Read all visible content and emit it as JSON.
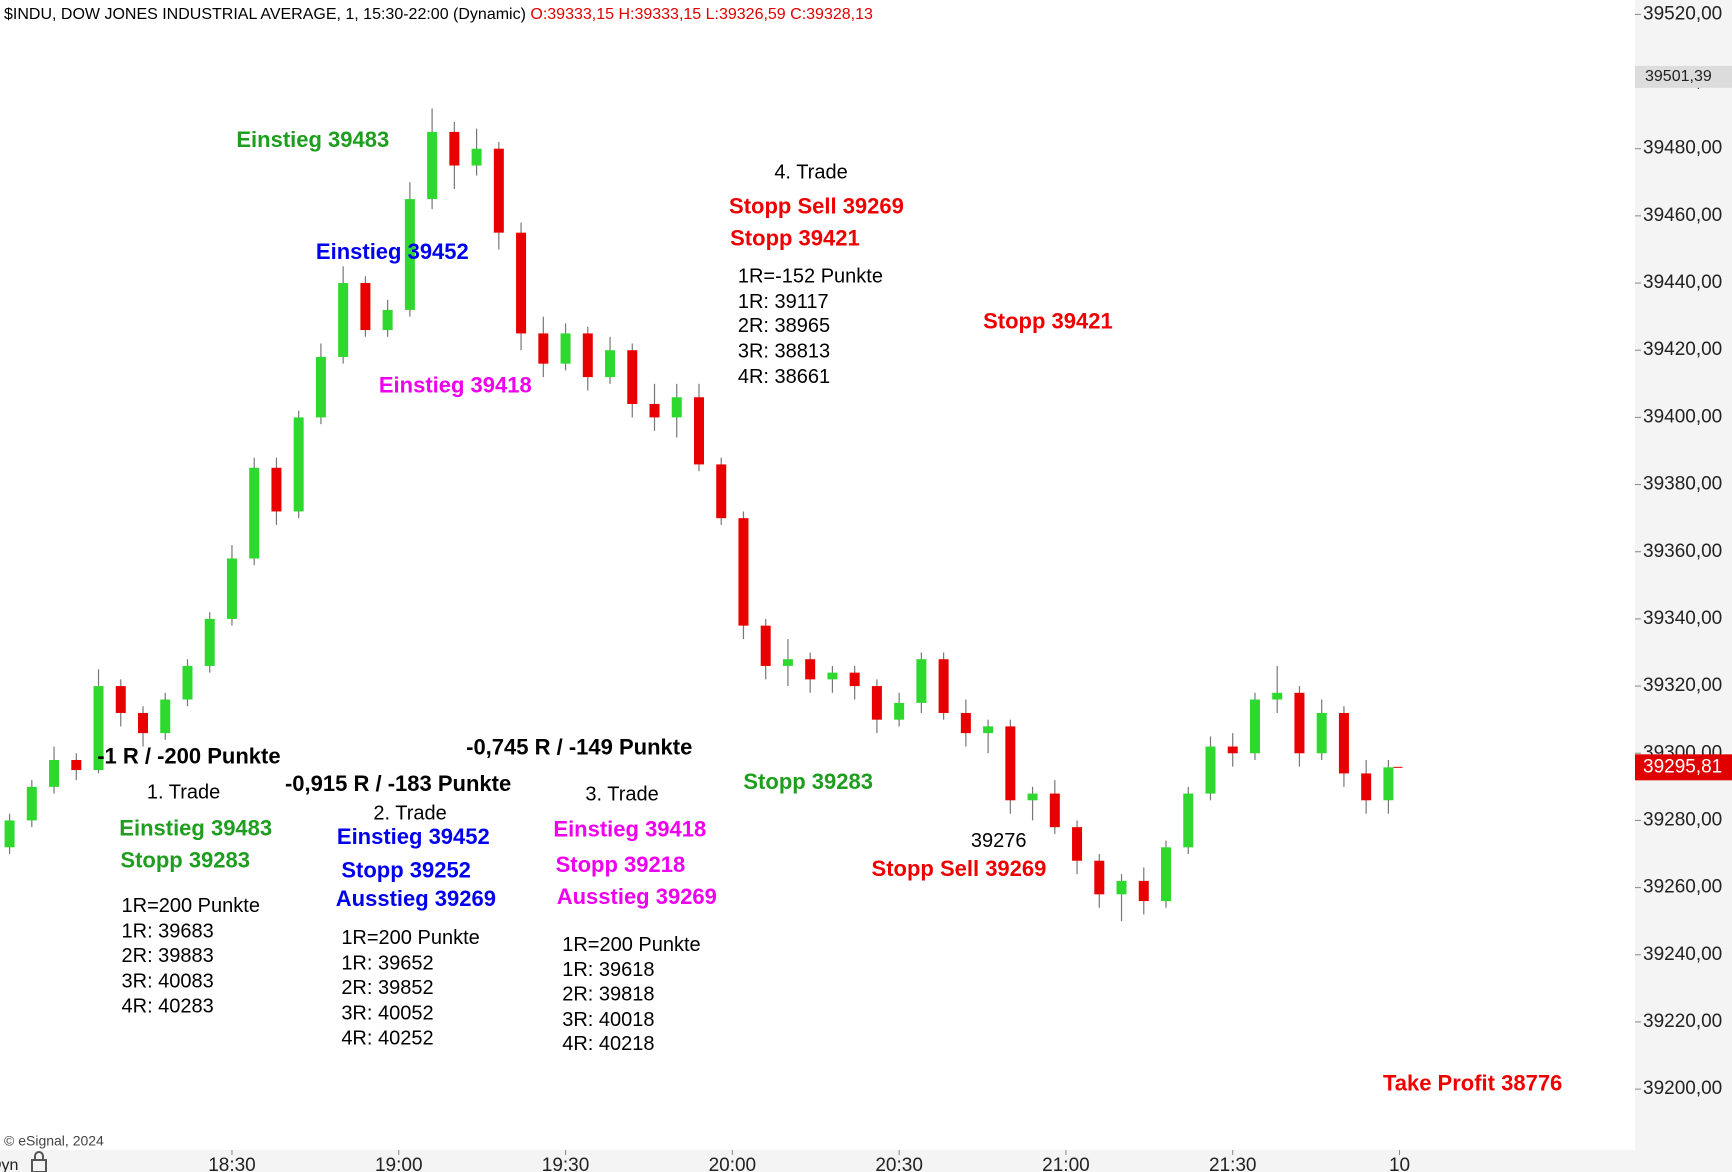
{
  "chart_data": {
    "type": "candlestick",
    "title": "$INDU, DOW JONES INDUSTRIAL AVERAGE, 1, 15:30-22:00 (Dynamic)",
    "subtitle": "O:39333,15 H:39333,15 L:39326,59 C:39328,13",
    "x": [
      "17:50",
      "17:54",
      "17:58",
      "18:02",
      "18:06",
      "18:10",
      "18:14",
      "18:18",
      "18:22",
      "18:26",
      "18:30",
      "18:34",
      "18:38",
      "18:42",
      "18:46",
      "18:50",
      "18:54",
      "18:58",
      "19:02",
      "19:06",
      "19:10",
      "19:14",
      "19:18",
      "19:22",
      "19:26",
      "19:30",
      "19:34",
      "19:38",
      "19:42",
      "19:46",
      "19:50",
      "19:54",
      "19:58",
      "20:02",
      "20:06",
      "20:10",
      "20:14",
      "20:18",
      "20:22",
      "20:26",
      "20:30",
      "20:34",
      "20:38",
      "20:42",
      "20:46",
      "20:50",
      "20:54",
      "20:58",
      "21:02",
      "21:06",
      "21:10",
      "21:14",
      "21:18",
      "21:22",
      "21:26",
      "21:30",
      "21:34",
      "21:38",
      "21:42",
      "21:46",
      "21:50",
      "21:54",
      "21:58"
    ],
    "open": [
      39272,
      39280,
      39290,
      39298,
      39295,
      39320,
      39312,
      39306,
      39316,
      39326,
      39340,
      39358,
      39385,
      39372,
      39400,
      39418,
      39440,
      39426,
      39432,
      39465,
      39485,
      39475,
      39480,
      39455,
      39425,
      39416,
      39425,
      39412,
      39420,
      39404,
      39400,
      39406,
      39386,
      39370,
      39338,
      39326,
      39328,
      39322,
      39324,
      39320,
      39310,
      39315,
      39328,
      39312,
      39306,
      39308,
      39286,
      39288,
      39278,
      39268,
      39258,
      39262,
      39256,
      39272,
      39288,
      39302,
      39300,
      39316,
      39318,
      39300,
      39312,
      39294,
      39286
    ],
    "high": [
      39282,
      39292,
      39302,
      39300,
      39325,
      39322,
      39314,
      39318,
      39328,
      39342,
      39362,
      39388,
      39388,
      39402,
      39422,
      39445,
      39442,
      39435,
      39470,
      39492,
      39488,
      39486,
      39482,
      39458,
      39430,
      39428,
      39427,
      39424,
      39422,
      39410,
      39410,
      39410,
      39388,
      39372,
      39340,
      39334,
      39330,
      39326,
      39326,
      39322,
      39318,
      39330,
      39330,
      39316,
      39310,
      39310,
      39290,
      39292,
      39280,
      39270,
      39264,
      39266,
      39274,
      39290,
      39305,
      39306,
      39318,
      39326,
      39320,
      39316,
      39314,
      39298,
      39298
    ],
    "low": [
      39270,
      39278,
      39288,
      39292,
      39294,
      39308,
      39302,
      39304,
      39314,
      39324,
      39338,
      39356,
      39368,
      39370,
      39398,
      39416,
      39424,
      39424,
      39430,
      39462,
      39468,
      39472,
      39450,
      39420,
      39412,
      39414,
      39408,
      39410,
      39400,
      39396,
      39394,
      39384,
      39368,
      39334,
      39322,
      39320,
      39318,
      39318,
      39316,
      39306,
      39308,
      39312,
      39310,
      39302,
      39300,
      39282,
      39280,
      39276,
      39264,
      39254,
      39250,
      39252,
      39254,
      39270,
      39286,
      39296,
      39298,
      39312,
      39296,
      39298,
      39290,
      39282,
      39282
    ],
    "close": [
      39280,
      39290,
      39298,
      39295,
      39320,
      39312,
      39306,
      39316,
      39326,
      39340,
      39358,
      39385,
      39372,
      39400,
      39418,
      39440,
      39426,
      39432,
      39465,
      39485,
      39475,
      39480,
      39455,
      39425,
      39416,
      39425,
      39412,
      39420,
      39404,
      39400,
      39406,
      39386,
      39370,
      39338,
      39326,
      39328,
      39322,
      39324,
      39320,
      39310,
      39315,
      39328,
      39312,
      39306,
      39308,
      39286,
      39288,
      39278,
      39268,
      39258,
      39262,
      39256,
      39272,
      39288,
      39302,
      39300,
      39316,
      39318,
      39300,
      39312,
      39294,
      39286,
      39295.81
    ],
    "last_label": "39295,81",
    "marker_level": {
      "value": 39501.39,
      "label": "39501,39"
    },
    "up_color": "#2fd82f",
    "down_color": "#e80000",
    "ylim": [
      39200,
      39520
    ],
    "yticks": [
      {
        "value": 39200,
        "label": "39200,00"
      },
      {
        "value": 39220,
        "label": "39220,00"
      },
      {
        "value": 39240,
        "label": "39240,00"
      },
      {
        "value": 39260,
        "label": "39260,00"
      },
      {
        "value": 39280,
        "label": "39280,00"
      },
      {
        "value": 39300,
        "label": "39300,00"
      },
      {
        "value": 39320,
        "label": "39320,00"
      },
      {
        "value": 39340,
        "label": "39340,00"
      },
      {
        "value": 39360,
        "label": "39360,00"
      },
      {
        "value": 39380,
        "label": "39380,00"
      },
      {
        "value": 39400,
        "label": "39400,00"
      },
      {
        "value": 39420,
        "label": "39420,00"
      },
      {
        "value": 39440,
        "label": "39440,00"
      },
      {
        "value": 39460,
        "label": "39460,00"
      },
      {
        "value": 39480,
        "label": "39480,00"
      },
      {
        "value": 39500,
        "label": "39500,00"
      },
      {
        "value": 39520,
        "label": "39520,00"
      }
    ],
    "xticks": [
      "18:30",
      "19:00",
      "19:30",
      "20:00",
      "20:30",
      "21:00",
      "21:30",
      {
        "value": "22:00",
        "label": "10"
      }
    ],
    "annotations": [
      {
        "text": "Einstieg 39483",
        "color": "#1e9e1e"
      },
      {
        "text": "Einstieg 39452",
        "color": "#0000ee"
      },
      {
        "text": "Einstieg 39418",
        "color": "#ee00ee"
      },
      {
        "text": "4. Trade",
        "color": "#000000"
      },
      {
        "text": "Stopp Sell 39269",
        "color": "#ee0000"
      },
      {
        "text": "Stopp 39421",
        "color": "#ee0000"
      },
      {
        "text": "1R=-152 Punkte",
        "color": "#000000"
      },
      {
        "text": "1R: 39117",
        "color": "#000000"
      },
      {
        "text": "2R: 38965",
        "color": "#000000"
      },
      {
        "text": "3R: 38813",
        "color": "#000000"
      },
      {
        "text": "4R: 38661",
        "color": "#000000"
      },
      {
        "text": "Stopp 39421",
        "color": "#ee0000"
      },
      {
        "text": "-1 R / -200 Punkte",
        "color": "#000000"
      },
      {
        "text": "1. Trade",
        "color": "#000000"
      },
      {
        "text": "Einstieg 39483",
        "color": "#1e9e1e"
      },
      {
        "text": "Stopp 39283",
        "color": "#1e9e1e"
      },
      {
        "text": "1R=200 Punkte",
        "color": "#000000"
      },
      {
        "text": "1R: 39683",
        "color": "#000000"
      },
      {
        "text": "2R: 39883",
        "color": "#000000"
      },
      {
        "text": "3R: 40083",
        "color": "#000000"
      },
      {
        "text": "4R: 40283",
        "color": "#000000"
      },
      {
        "text": "-0,915 R / -183 Punkte",
        "color": "#000000"
      },
      {
        "text": "2. Trade",
        "color": "#000000"
      },
      {
        "text": "Einstieg 39452",
        "color": "#0000ee"
      },
      {
        "text": "Stopp 39252",
        "color": "#0000ee"
      },
      {
        "text": "Ausstieg 39269",
        "color": "#0000ee"
      },
      {
        "text": "1R=200 Punkte",
        "color": "#000000"
      },
      {
        "text": "1R: 39652",
        "color": "#000000"
      },
      {
        "text": "2R: 39852",
        "color": "#000000"
      },
      {
        "text": "3R: 40052",
        "color": "#000000"
      },
      {
        "text": "4R: 40252",
        "color": "#000000"
      },
      {
        "text": "-0,745 R / -149 Punkte",
        "color": "#000000"
      },
      {
        "text": "3. Trade",
        "color": "#000000"
      },
      {
        "text": "Einstieg 39418",
        "color": "#ee00ee"
      },
      {
        "text": "Stopp 39218",
        "color": "#ee00ee"
      },
      {
        "text": "Ausstieg 39269",
        "color": "#ee00ee"
      },
      {
        "text": "1R=200 Punkte",
        "color": "#000000"
      },
      {
        "text": "1R: 39618",
        "color": "#000000"
      },
      {
        "text": "2R: 39818",
        "color": "#000000"
      },
      {
        "text": "3R: 40018",
        "color": "#000000"
      },
      {
        "text": "4R: 40218",
        "color": "#000000"
      },
      {
        "text": "Stopp 39283",
        "color": "#1e9e1e"
      },
      {
        "text": "39276",
        "color": "#000000"
      },
      {
        "text": "Stopp Sell 39269",
        "color": "#ee0000"
      },
      {
        "text": "Take Profit 38776",
        "color": "#ee0000"
      }
    ],
    "copyright": "© eSignal, 2024",
    "mode_label": "Dyn"
  }
}
